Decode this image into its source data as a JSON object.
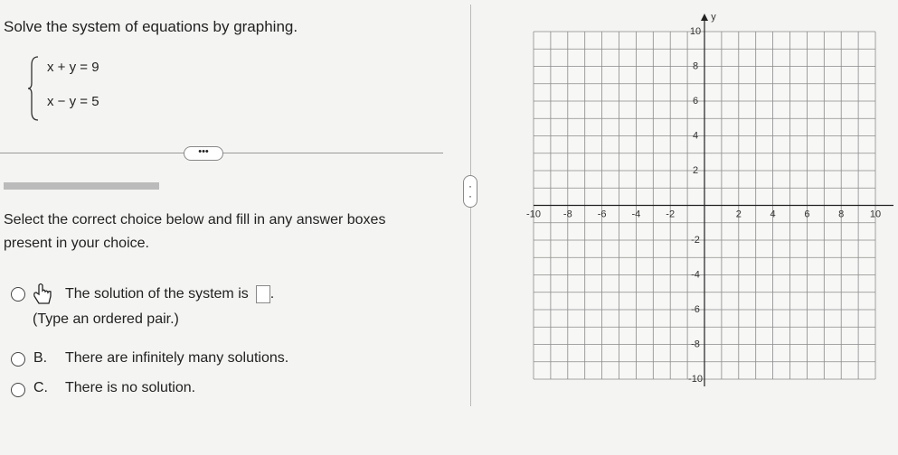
{
  "problem": {
    "instruction": "Solve the system of equations by graphing.",
    "equations": [
      "x + y = 9",
      "x − y = 5"
    ]
  },
  "prompt": "Select the correct choice below and fill in any answer boxes present in your choice.",
  "choices": [
    {
      "text": "The solution of the system is",
      "note": "(Type an ordered pair.)"
    },
    {
      "label": "B.",
      "text": "There are infinitely many solutions."
    },
    {
      "label": "C.",
      "text": "There is no solution."
    }
  ],
  "graph": {
    "axis_label": "y",
    "xlim": [
      -10,
      10
    ],
    "ylim": [
      -10,
      10
    ],
    "xticks": [
      -10,
      -8,
      -6,
      -4,
      -2,
      2,
      4,
      6,
      8,
      10
    ],
    "yticks": [
      10,
      8,
      6,
      4,
      2,
      -2,
      -4,
      -6,
      -8,
      -10
    ]
  }
}
